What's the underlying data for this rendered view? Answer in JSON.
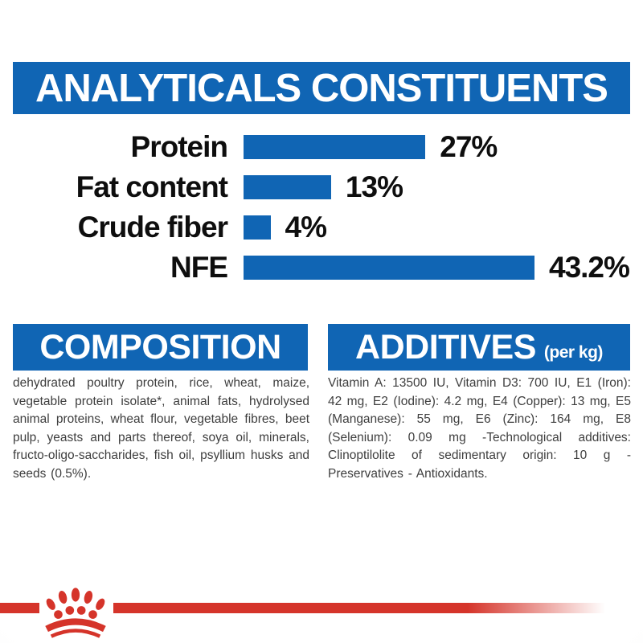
{
  "header": {
    "title": "ANALYTICALS CONSTITUENTS"
  },
  "chart_data": {
    "type": "bar",
    "orientation": "horizontal",
    "title": "ANALYTICALS CONSTITUENTS",
    "categories": [
      "Protein",
      "Fat content",
      "Crude fiber",
      "NFE"
    ],
    "values": [
      27,
      13,
      4,
      43.2
    ],
    "value_labels": [
      "27%",
      "13%",
      "4%",
      "43.2%"
    ],
    "unit": "%",
    "xlim": [
      0,
      43.2
    ],
    "grid": false,
    "legend": false,
    "bar_color": "#1065b4",
    "label_color": "#0e0e0e"
  },
  "sections": {
    "composition": {
      "title": "COMPOSITION",
      "body": "dehydrated poultry protein, rice, wheat, maize, vegetable protein isolate*, animal fats, hydrolysed animal proteins, wheat flour, vegetable fibres, beet pulp, yeasts and parts thereof, soya oil, minerals, fructo-oligo-saccharides, fish oil, psyllium husks and seeds (0.5%)."
    },
    "additives": {
      "title": "ADDITIVES",
      "title_suffix": "(per kg)",
      "body": "Vitamin A: 13500 IU, Vitamin D3: 700 IU, E1 (Iron): 42 mg, E2 (Iodine): 4.2 mg, E4 (Copper): 13 mg, E5 (Manganese): 55 mg, E6 (Zinc): 164 mg, E8 (Selenium): 0.09 mg -Technological additives: Clinoptilolite of sedimentary origin: 10 g - Preservatives - Antioxidants."
    }
  },
  "footer": {
    "logo_icon": "royal-canin-crown-paw-logo"
  },
  "colors": {
    "brand_blue": "#1065b4",
    "brand_red": "#d5342a",
    "body_text": "#3e3e3e"
  }
}
